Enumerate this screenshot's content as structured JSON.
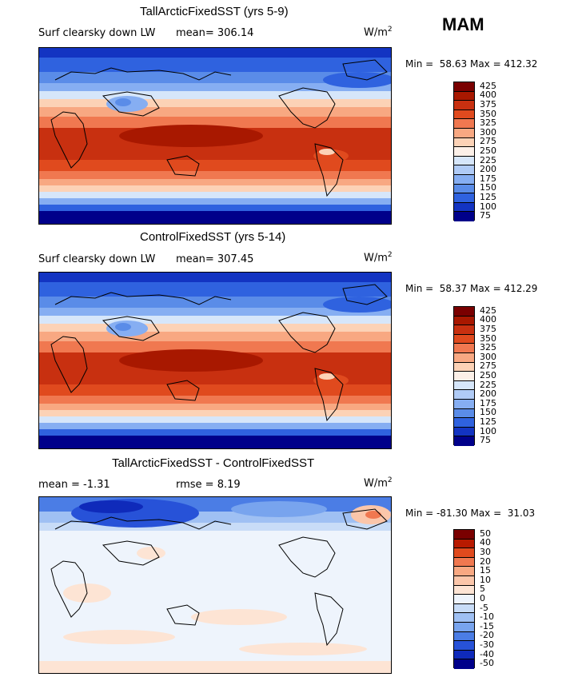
{
  "season": "MAM",
  "units_base": "W/m",
  "units_exp": "2",
  "panels": [
    {
      "title": "TallArcticFixedSST (yrs 5-9)",
      "subtitle_left": "Surf clearsky down LW",
      "stat_text": "mean= 306.14",
      "minmax": "Min =  58.63 Max = 412.32",
      "colorbar_labels": [
        "425",
        "400",
        "375",
        "350",
        "325",
        "300",
        "275",
        "250",
        "225",
        "200",
        "175",
        "150",
        "125",
        "100",
        "75"
      ]
    },
    {
      "title": "ControlFixedSST (yrs 5-14)",
      "subtitle_left": "Surf clearsky down LW",
      "stat_text": "mean= 307.45",
      "minmax": "Min =  58.37 Max = 412.29",
      "colorbar_labels": [
        "425",
        "400",
        "375",
        "350",
        "325",
        "300",
        "275",
        "250",
        "225",
        "200",
        "175",
        "150",
        "125",
        "100",
        "75"
      ]
    },
    {
      "title": "TallArcticFixedSST - ControlFixedSST",
      "subtitle_left": "mean =  -1.31",
      "stat_text": "rmse =   8.19",
      "minmax": "Min = -81.30 Max =  31.03",
      "colorbar_labels": [
        "50",
        "40",
        "30",
        "20",
        "15",
        "10",
        "5",
        "0",
        "-5",
        "-10",
        "-15",
        "-20",
        "-30",
        "-40",
        "-50"
      ]
    }
  ],
  "colors": {
    "abs_scale": [
      "#7a0000",
      "#a81800",
      "#c83010",
      "#e04a1e",
      "#f07850",
      "#f8a882",
      "#fcd2b6",
      "#fcf0e8",
      "#d6e6fa",
      "#b0cbf6",
      "#86aef2",
      "#5a8ce8",
      "#2f62df",
      "#1334c2",
      "#00008a"
    ],
    "diff_scale": [
      "#7a0000",
      "#b81a00",
      "#e04a1e",
      "#f07850",
      "#f8a882",
      "#fbc6aa",
      "#fde4d4",
      "#eef4fc",
      "#c8dcf7",
      "#9fc0f3",
      "#78a4ee",
      "#4b7de5",
      "#2752d8",
      "#0f2aba",
      "#00008a"
    ]
  }
}
